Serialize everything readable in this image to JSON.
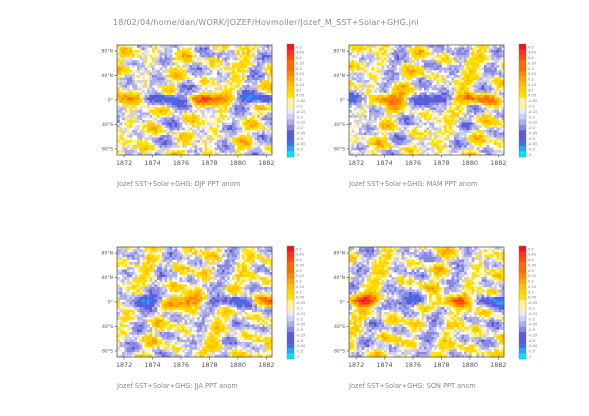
{
  "header": {
    "text": "18/02/04/home/dan/WORK/JOZEF/Hovmoller/Jozef_M_SST+Solar+GHG.jnl"
  },
  "colors": {
    "palette": [
      "#00e5ff",
      "#27a6ff",
      "#3e71f0",
      "#5b5bd9",
      "#8787e2",
      "#aeaeea",
      "#cfcff3",
      "#e8e8f8",
      "#fff1a0",
      "#ffe400",
      "#ffd300",
      "#ffc000",
      "#ffa300",
      "#ff8600",
      "#ff6a00",
      "#ff4a00",
      "#ff2e2e",
      "#ff1010"
    ]
  },
  "chart_data": [
    {
      "type": "heatmap",
      "title": "Jozef SST+Solar+GHG: DJF PPT anom",
      "x": [
        "1872",
        "1874",
        "1876",
        "1878",
        "1880",
        "1882"
      ],
      "y": [
        "80°S",
        "40°S",
        "0°",
        "40°N",
        "80°N"
      ],
      "xlim": [
        1871.5,
        1882.4
      ],
      "ylim": [
        -90,
        90
      ],
      "colorbar": [
        "0.5",
        "0.45",
        "0.4",
        "0.35",
        "0.3",
        "0.25",
        "0.2",
        "0.15",
        "0.1",
        "0.05",
        "-0.05",
        "-0.1",
        "-0.15",
        "-0.2",
        "-0.25",
        "-0.3",
        "-0.35",
        "-0.4",
        "-0.45",
        "-0.5",
        "-1"
      ]
    },
    {
      "type": "heatmap",
      "title": "Jozef SST+Solar+GHG: MAM PPT anom",
      "x": [
        "1872",
        "1874",
        "1876",
        "1878",
        "1880",
        "1882"
      ],
      "y": [
        "80°S",
        "40°S",
        "0°",
        "40°N",
        "80°N"
      ],
      "xlim": [
        1871.5,
        1882.4
      ],
      "ylim": [
        -90,
        90
      ],
      "colorbar": [
        "0.5",
        "0.45",
        "0.4",
        "0.35",
        "0.3",
        "0.25",
        "0.2",
        "0.15",
        "0.1",
        "0.05",
        "-0.05",
        "-0.1",
        "-0.15",
        "-0.2",
        "-0.25",
        "-0.3",
        "-0.35",
        "-0.4",
        "-0.45",
        "-0.5",
        "-1"
      ]
    },
    {
      "type": "heatmap",
      "title": "Jozef SST+Solar+GHG: JJA PPT anom",
      "x": [
        "1872",
        "1874",
        "1876",
        "1878",
        "1880",
        "1882"
      ],
      "y": [
        "80°S",
        "40°S",
        "0°",
        "40°N",
        "80°N"
      ],
      "xlim": [
        1871.5,
        1882.4
      ],
      "ylim": [
        -90,
        90
      ],
      "colorbar": [
        "0.5",
        "0.45",
        "0.4",
        "0.35",
        "0.3",
        "0.25",
        "0.2",
        "0.15",
        "0.1",
        "0.05",
        "-0.05",
        "-0.1",
        "-0.15",
        "-0.2",
        "-0.25",
        "-0.3",
        "-0.35",
        "-0.4",
        "-0.45",
        "-0.5",
        "-1"
      ]
    },
    {
      "type": "heatmap",
      "title": "Jozef SST+Solar+GHG: SON PPT anom",
      "x": [
        "1872",
        "1874",
        "1876",
        "1878",
        "1880",
        "1882"
      ],
      "y": [
        "80°S",
        "40°S",
        "0°",
        "40°N",
        "80°N"
      ],
      "xlim": [
        1871.5,
        1882.4
      ],
      "ylim": [
        -90,
        90
      ],
      "colorbar": [
        "0.5",
        "0.45",
        "0.4",
        "0.35",
        "0.3",
        "0.25",
        "0.2",
        "0.15",
        "0.1",
        "0.05",
        "-0.05",
        "-0.1",
        "-0.15",
        "-0.2",
        "-0.25",
        "-0.3",
        "-0.35",
        "-0.4",
        "-0.45",
        "-0.5",
        "-1"
      ]
    }
  ]
}
